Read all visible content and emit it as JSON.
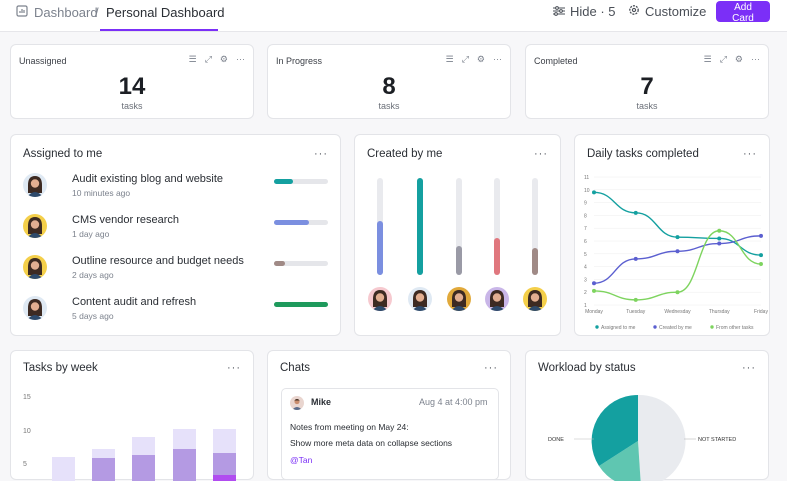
{
  "header": {
    "breadcrumb_root": "Dashboard",
    "breadcrumb_sep": "/",
    "breadcrumb_current": "Personal Dashboard",
    "hide_label": "Hide · 5",
    "customize_label": "Customize",
    "add_card_label": "Add Card"
  },
  "stats": [
    {
      "title": "Unassigned",
      "value": "14",
      "unit": "tasks"
    },
    {
      "title": "In Progress",
      "value": "8",
      "unit": "tasks"
    },
    {
      "title": "Completed",
      "value": "7",
      "unit": "tasks"
    }
  ],
  "assigned": {
    "title": "Assigned to me",
    "more": "···",
    "tasks": [
      {
        "name": "Audit existing blog and website",
        "time": "10 minutes ago",
        "progress": 0.35,
        "color": "#14a0a0",
        "avatar_bg": "#dfe9f3"
      },
      {
        "name": " CMS vendor research",
        "time": "1 day ago",
        "progress": 0.65,
        "color": "#7b8fe0",
        "avatar_bg": "#f4cf4a"
      },
      {
        "name": "Outline resource and budget needs",
        "time": "2 days ago",
        "progress": 0.2,
        "color": "#a08a86",
        "avatar_bg": "#f4cf4a"
      },
      {
        "name": "Content audit and refresh",
        "time": "5 days ago",
        "progress": 1.0,
        "color": "#1e9a5c",
        "avatar_bg": "#dfe9f3"
      }
    ]
  },
  "created": {
    "title": "Created by me",
    "more": "···",
    "bars": [
      {
        "value": 0.56,
        "color": "#7b8fe0",
        "avatar_bg": "#f6c9cf"
      },
      {
        "value": 1.0,
        "color": "#14a0a0",
        "avatar_bg": "#dfe9f3"
      },
      {
        "value": 0.3,
        "color": "#9a9aa6",
        "avatar_bg": "#e1a93b"
      },
      {
        "value": 0.38,
        "color": "#e0777e",
        "avatar_bg": "#c9b6e8"
      },
      {
        "value": 0.28,
        "color": "#a08a86",
        "avatar_bg": "#f4cf4a"
      }
    ]
  },
  "daily": {
    "title": "Daily tasks completed",
    "more": "···"
  },
  "chart_data": {
    "type": "line",
    "title": "Daily tasks completed",
    "x": [
      "Monday",
      "Tuesday",
      "Wednesday",
      "Thursday",
      "Friday"
    ],
    "ylim": [
      1,
      11
    ],
    "yticks": [
      1,
      2,
      3,
      4,
      5,
      6,
      7,
      8,
      9,
      10,
      11
    ],
    "xlabel": "",
    "ylabel": "",
    "legend": "bottom",
    "series": [
      {
        "name": "Assigned to me",
        "color": "#14a0a0",
        "values": [
          9.8,
          8.2,
          6.3,
          6.2,
          4.9
        ]
      },
      {
        "name": "Created by me",
        "color": "#5b5fd0",
        "values": [
          2.7,
          4.6,
          5.2,
          5.8,
          6.4
        ]
      },
      {
        "name": "From other tasks",
        "color": "#7ed45f",
        "values": [
          2.1,
          1.4,
          2.0,
          6.8,
          4.2
        ]
      }
    ]
  },
  "weekly": {
    "title": "Tasks by week",
    "more": "···",
    "yticks": [
      "15",
      "10",
      "5"
    ],
    "bars": [
      {
        "light": 0.34,
        "mid": 0.06,
        "dark": 0.0
      },
      {
        "light": 0.42,
        "mid": 0.33,
        "dark": 0.0
      },
      {
        "light": 0.54,
        "mid": 0.36,
        "dark": 0.0
      },
      {
        "light": 0.62,
        "mid": 0.42,
        "dark": 0.09
      },
      {
        "light": 0.62,
        "mid": 0.38,
        "dark": 0.16
      }
    ]
  },
  "chats": {
    "title": "Chats",
    "more": "···",
    "author": "Mike",
    "date": "Aug 4 at 4:00 pm",
    "line1": "Notes from meeting on May 24:",
    "line2": "Show more meta data on collapse sections",
    "mention": "@Tan"
  },
  "workload": {
    "title": "Workload by status",
    "more": "···",
    "label_done": "DONE",
    "label_not_started": "NOT STARTED"
  }
}
